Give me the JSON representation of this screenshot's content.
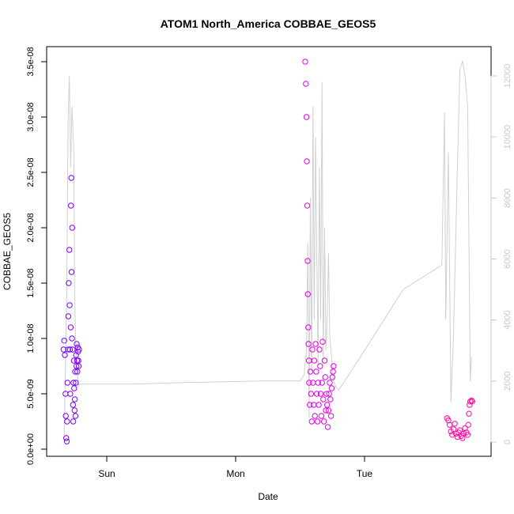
{
  "chart_data": {
    "type": "scatter",
    "title": "ATOM1 North_America COBBAE_GEOS5",
    "xlabel": "Date",
    "ylabel": "COBBAE_GEOS5",
    "x_ticks": [
      {
        "label": "Sun",
        "x": 0.0
      },
      {
        "label": "Mon",
        "x": 1.0
      },
      {
        "label": "Tue",
        "x": 2.0
      }
    ],
    "xlim": [
      -0.38,
      2.88
    ],
    "y_ticks": [
      "0.0e+00",
      "5.0e-09",
      "1.0e-08",
      "1.5e-08",
      "2.0e-08",
      "2.5e-08",
      "3.0e-08",
      "3.5e-08"
    ],
    "ylim": [
      0,
      3.5e-08
    ],
    "y2_ticks": [
      "0",
      "2000",
      "4000",
      "6000",
      "8000",
      "10000",
      "12000"
    ],
    "y2lim": [
      0,
      12500
    ],
    "y2_color": "#c8c8c8",
    "series": [
      {
        "type": "line",
        "axis": "right",
        "color": "#d0d0d0",
        "x": [
          -0.33,
          -0.31,
          -0.3,
          -0.29,
          -0.28,
          -0.27,
          -0.26,
          -0.255,
          -0.25,
          -0.24,
          -0.23,
          -0.22,
          -0.215,
          -0.21,
          0.2,
          0.6,
          1.2,
          1.5,
          1.53,
          1.55,
          1.56,
          1.57,
          1.58,
          1.59,
          1.6,
          1.61,
          1.62,
          1.63,
          1.64,
          1.65,
          1.66,
          1.67,
          1.68,
          1.69,
          1.7,
          1.71,
          1.72,
          1.73,
          1.74,
          1.75,
          1.76,
          1.78,
          1.8,
          2.0,
          2.3,
          2.6,
          2.62,
          2.63,
          2.65,
          2.67,
          2.69,
          2.72,
          2.74,
          2.76,
          2.78,
          2.8,
          2.82,
          2.83
        ],
        "y": [
          200,
          5000,
          10500,
          12000,
          9000,
          11000,
          10000,
          9500,
          5000,
          3000,
          2500,
          1800,
          1900,
          1900,
          1900,
          1950,
          2000,
          2000,
          2200,
          3000,
          6500,
          800,
          8000,
          2300,
          11000,
          4000,
          10000,
          6000,
          2500,
          9000,
          4000,
          11800,
          2500,
          7000,
          3000,
          4000,
          6200,
          3500,
          3000,
          2400,
          2000,
          1800,
          1700,
          3000,
          5000,
          5800,
          10800,
          4000,
          9500,
          1300,
          3500,
          9000,
          12200,
          12500,
          12000,
          11000,
          2000,
          2800
        ]
      },
      {
        "type": "scatter",
        "axis": "left",
        "name": "",
        "color": "#7a00ff",
        "x": [
          -0.335,
          -0.33,
          -0.325,
          -0.32,
          -0.318,
          -0.315,
          -0.31,
          -0.308,
          -0.305,
          -0.3,
          -0.298,
          -0.295,
          -0.29,
          -0.288,
          -0.285,
          -0.283,
          -0.28,
          -0.278,
          -0.275,
          -0.273,
          -0.27,
          -0.268,
          -0.265,
          -0.262,
          -0.26,
          -0.258,
          -0.255,
          -0.253,
          -0.25,
          -0.248,
          -0.245,
          -0.243,
          -0.24,
          -0.238,
          -0.235,
          -0.233,
          -0.23,
          -0.228,
          -0.225,
          -0.222,
          -0.22,
          -0.218,
          -0.215
        ],
        "y": [
          9e-09,
          9.8e-09,
          8.5e-09,
          5e-09,
          3e-09,
          1e-09,
          7e-10,
          2.5e-09,
          6e-09,
          9e-09,
          1.2e-08,
          1.5e-08,
          1.8e-08,
          1.3e-08,
          9e-09,
          5e-09,
          1.1e-08,
          2.2e-08,
          2.45e-08,
          1.6e-08,
          1e-08,
          2e-08,
          9e-09,
          4e-09,
          2.5e-09,
          6e-09,
          8e-09,
          5.5e-09,
          3.5e-09,
          4.5e-09,
          7e-09,
          3e-09,
          6e-09,
          8.5e-09,
          7.5e-09,
          9.5e-09,
          8e-09,
          7e-09,
          9.2e-09,
          8.8e-09,
          8e-09,
          7.5e-09,
          9e-09
        ]
      },
      {
        "type": "scatter",
        "axis": "left",
        "name": "",
        "color": "#e600e6",
        "x": [
          1.54,
          1.545,
          1.55,
          1.552,
          1.555,
          1.558,
          1.56,
          1.563,
          1.565,
          1.568,
          1.57,
          1.575,
          1.58,
          1.585,
          1.59,
          1.595,
          1.6,
          1.605,
          1.61,
          1.615,
          1.62,
          1.625,
          1.63,
          1.635,
          1.64,
          1.645,
          1.65,
          1.655,
          1.66,
          1.665,
          1.67,
          1.675,
          1.68,
          1.685,
          1.69,
          1.695,
          1.7,
          1.705,
          1.71,
          1.715,
          1.72,
          1.725,
          1.73,
          1.735,
          1.74,
          1.745,
          1.75,
          1.755,
          1.76
        ],
        "y": [
          3.5e-08,
          3.3e-08,
          3e-08,
          2.6e-08,
          2.2e-08,
          1.7e-08,
          1.4e-08,
          1.1e-08,
          9.5e-09,
          8e-09,
          6e-09,
          4e-09,
          7e-09,
          5e-09,
          2.5e-09,
          9e-09,
          6e-09,
          4e-09,
          8e-09,
          3e-09,
          9.5e-09,
          7e-09,
          5e-09,
          2.5e-09,
          6e-09,
          4e-09,
          9e-09,
          7.5e-09,
          5e-09,
          3e-09,
          6e-09,
          9.7e-09,
          4.5e-09,
          2.5e-09,
          8e-09,
          6.5e-09,
          3.5e-09,
          5e-09,
          4e-09,
          2e-09,
          3.5e-09,
          5e-09,
          6e-09,
          4.5e-09,
          3e-09,
          5.5e-09,
          6.5e-09,
          7e-09,
          7.5e-09
        ]
      },
      {
        "type": "scatter",
        "axis": "left",
        "name": "",
        "color": "#ff0aa0",
        "x": [
          2.64,
          2.65,
          2.66,
          2.67,
          2.68,
          2.69,
          2.7,
          2.71,
          2.72,
          2.73,
          2.74,
          2.75,
          2.76,
          2.77,
          2.78,
          2.79,
          2.8,
          2.805,
          2.81,
          2.815,
          2.82,
          2.83,
          2.835
        ],
        "y": [
          2.8e-09,
          2.6e-09,
          2.2e-09,
          1.6e-09,
          1.3e-09,
          1.8e-09,
          2.3e-09,
          1.4e-09,
          1.1e-09,
          1.5e-09,
          1.7e-09,
          1.2e-09,
          1e-09,
          1.4e-09,
          1.9e-09,
          1.5e-09,
          1.3e-09,
          2.2e-09,
          3.2e-09,
          4e-09,
          4.3e-09,
          4.4e-09,
          4.3e-09
        ]
      }
    ]
  }
}
